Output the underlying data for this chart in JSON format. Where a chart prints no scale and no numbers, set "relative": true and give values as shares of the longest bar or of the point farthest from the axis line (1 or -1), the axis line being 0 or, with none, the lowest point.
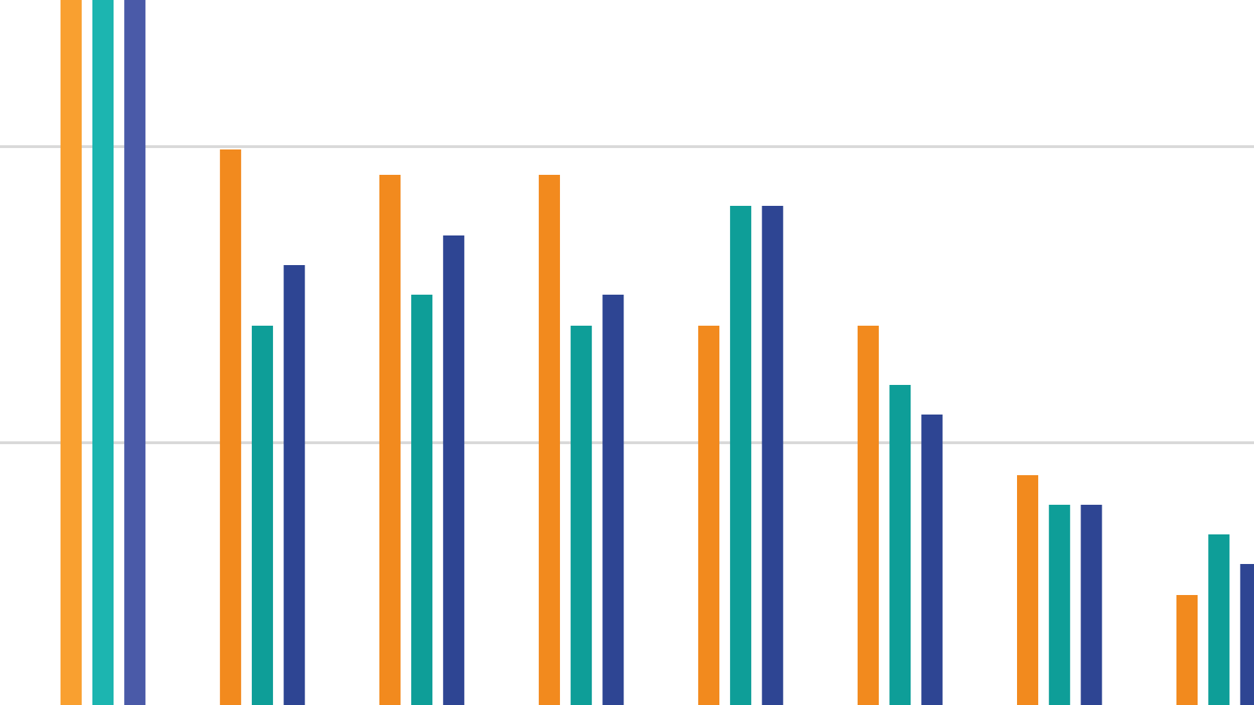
{
  "chart_data": {
    "type": "bar",
    "relative": true,
    "categories": [
      null,
      null,
      null,
      null,
      null,
      null,
      null,
      null
    ],
    "ref_lines": [
      {
        "axis": "y",
        "value": 0.372,
        "color": "#d9d9d9"
      },
      {
        "axis": "y",
        "value": 0.792,
        "color": "#d9d9d9"
      }
    ],
    "series": [
      {
        "colors": [
          "#f9a030",
          "#f28a1e",
          "#f28a1e",
          "#f28a1e",
          "#f28a1e",
          "#f28a1e",
          "#f28a1e",
          "#f28a1e"
        ],
        "values": [
          1,
          0.788,
          0.752,
          0.752,
          0.538,
          0.538,
          0.326,
          0.156
        ]
      },
      {
        "colors": [
          "#1cb5b0",
          "#0e9e98",
          "#0e9e98",
          "#0e9e98",
          "#0e9e98",
          "#0e9e98",
          "#0e9e98",
          "#0e9e98"
        ],
        "values": [
          1,
          0.538,
          0.582,
          0.538,
          0.708,
          0.454,
          0.284,
          0.242
        ]
      },
      {
        "colors": [
          "#4a5aa8",
          "#2e4593",
          "#2e4593",
          "#2e4593",
          "#2e4593",
          "#2e4593",
          "#2e4593",
          "#2e4593"
        ],
        "values": [
          1,
          0.624,
          0.666,
          0.582,
          0.708,
          0.412,
          0.284,
          0.2
        ]
      }
    ]
  }
}
